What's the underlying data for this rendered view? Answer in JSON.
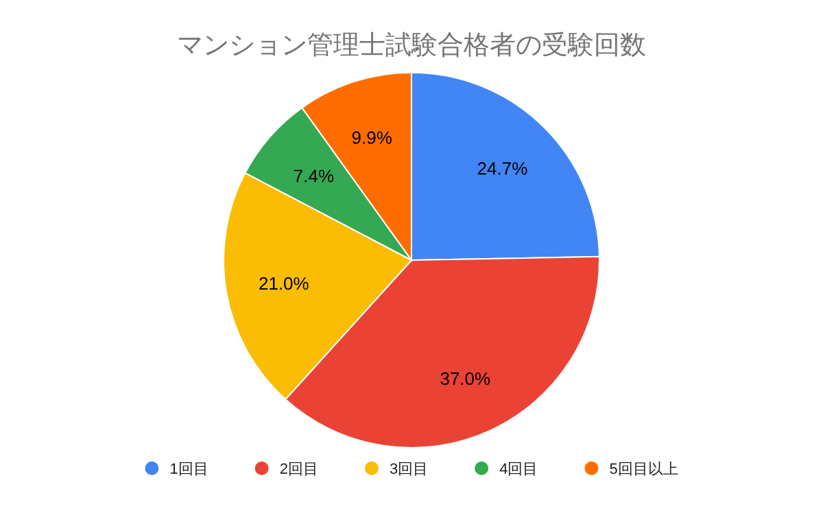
{
  "chart_data": {
    "type": "pie",
    "title": "マンション管理士試験合格者の受験回数",
    "categories": [
      "1回目",
      "2回目",
      "3回目",
      "4回目",
      "5回目以上"
    ],
    "values": [
      24.7,
      37.0,
      21.0,
      7.4,
      9.9
    ],
    "colors": [
      "#4285f4",
      "#ea4335",
      "#fbbc04",
      "#34a853",
      "#ff6d01"
    ],
    "value_labels": [
      "24.7%",
      "37.0%",
      "21.0%",
      "7.4%",
      "9.9%"
    ],
    "legend": "bottom"
  }
}
